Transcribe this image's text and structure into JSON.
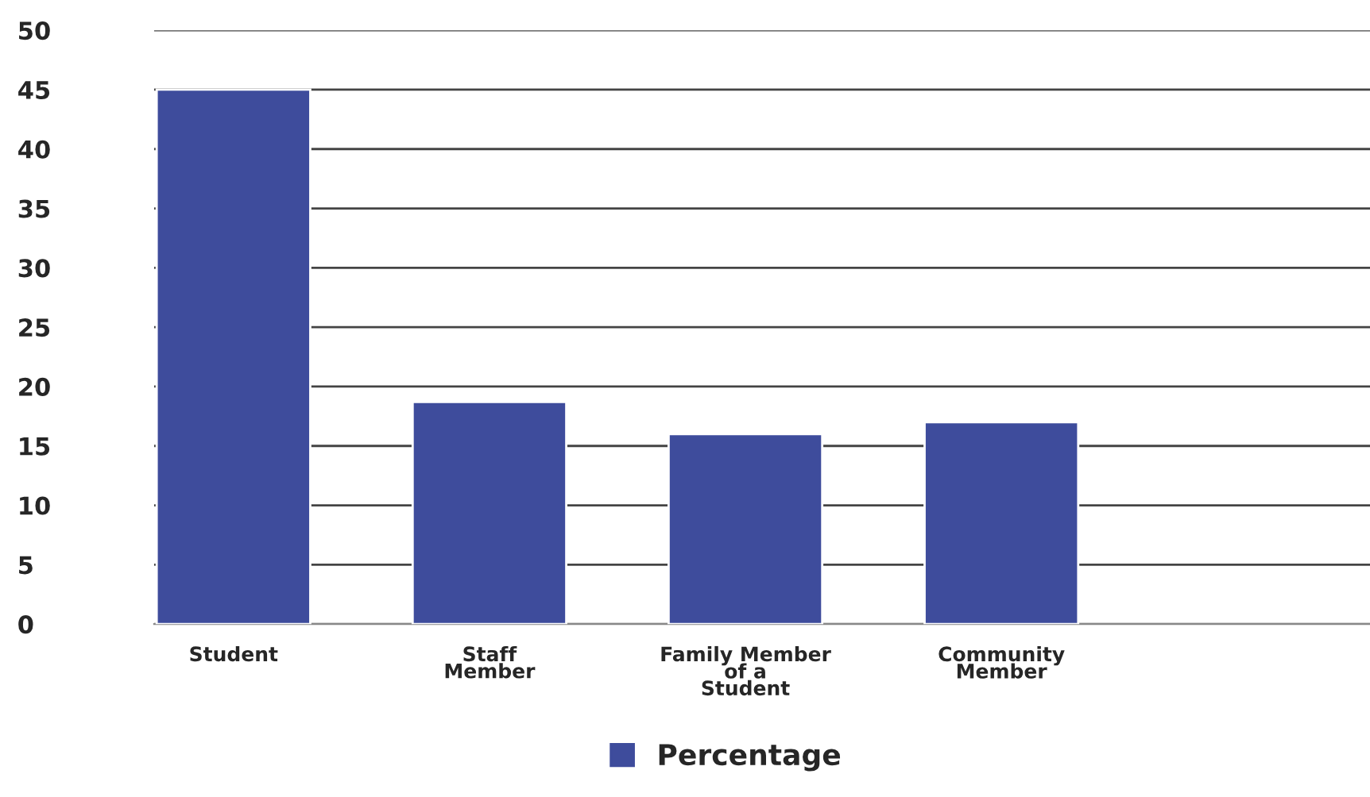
{
  "chart_data": {
    "type": "bar",
    "categories": [
      "Student",
      "Staff\nMember",
      "Family Member\nof a\nStudent",
      "Community\nMember",
      null
    ],
    "series": [
      {
        "name": "Percentage",
        "color": "#3e4c9c",
        "values": [
          45,
          18.7,
          16,
          17,
          null
        ]
      }
    ],
    "ylim": [
      0,
      50
    ],
    "yticks": [
      0,
      5,
      10,
      15,
      20,
      25,
      30,
      35,
      40,
      45,
      50
    ],
    "grid": "y",
    "legend": "bottom"
  }
}
